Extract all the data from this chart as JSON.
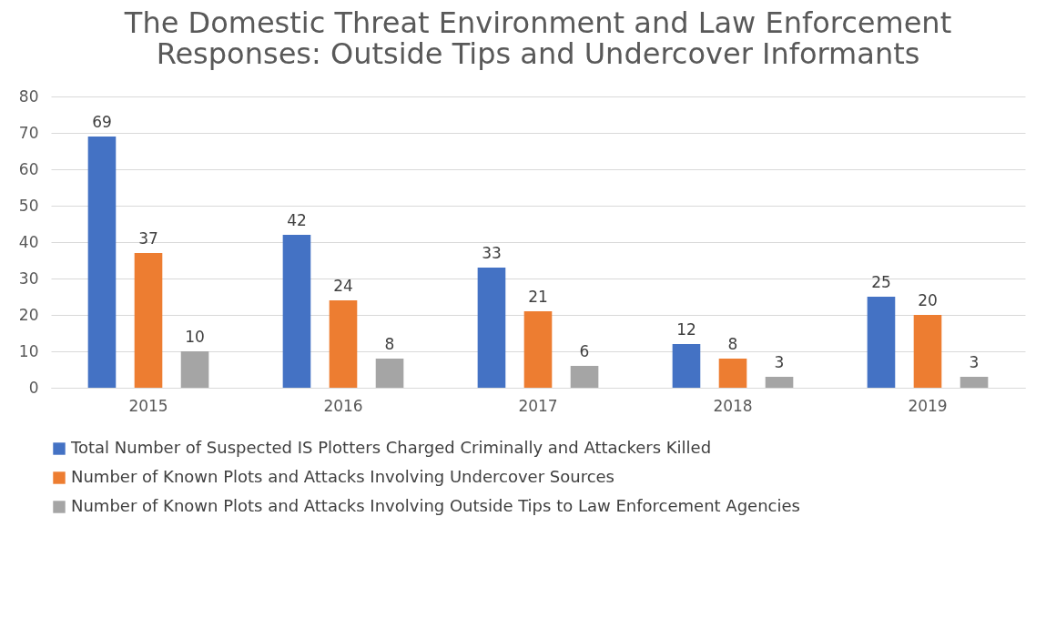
{
  "chart_data": {
    "type": "bar",
    "title": "The Domestic Threat Environment and Law Enforcement Responses: Outside Tips and Undercover Informants",
    "categories": [
      "2015",
      "2016",
      "2017",
      "2018",
      "2019"
    ],
    "series": [
      {
        "name": "Total Number of Suspected IS Plotters Charged Criminally and Attackers Killed",
        "color": "#4472c4",
        "values": [
          69,
          42,
          33,
          12,
          25
        ]
      },
      {
        "name": "Number of Known Plots and Attacks Involving Undercover Sources",
        "color": "#ed7d31",
        "values": [
          37,
          24,
          21,
          8,
          20
        ]
      },
      {
        "name": "Number of Known Plots and Attacks Involving Outside Tips to Law Enforcement Agencies",
        "color": "#a5a5a5",
        "values": [
          10,
          8,
          6,
          3,
          3
        ]
      }
    ],
    "ylim": [
      0,
      80
    ],
    "yticks": [
      0,
      10,
      20,
      30,
      40,
      50,
      60,
      70,
      80
    ],
    "grid": "y",
    "legend": "bottom",
    "data_labels": true
  }
}
